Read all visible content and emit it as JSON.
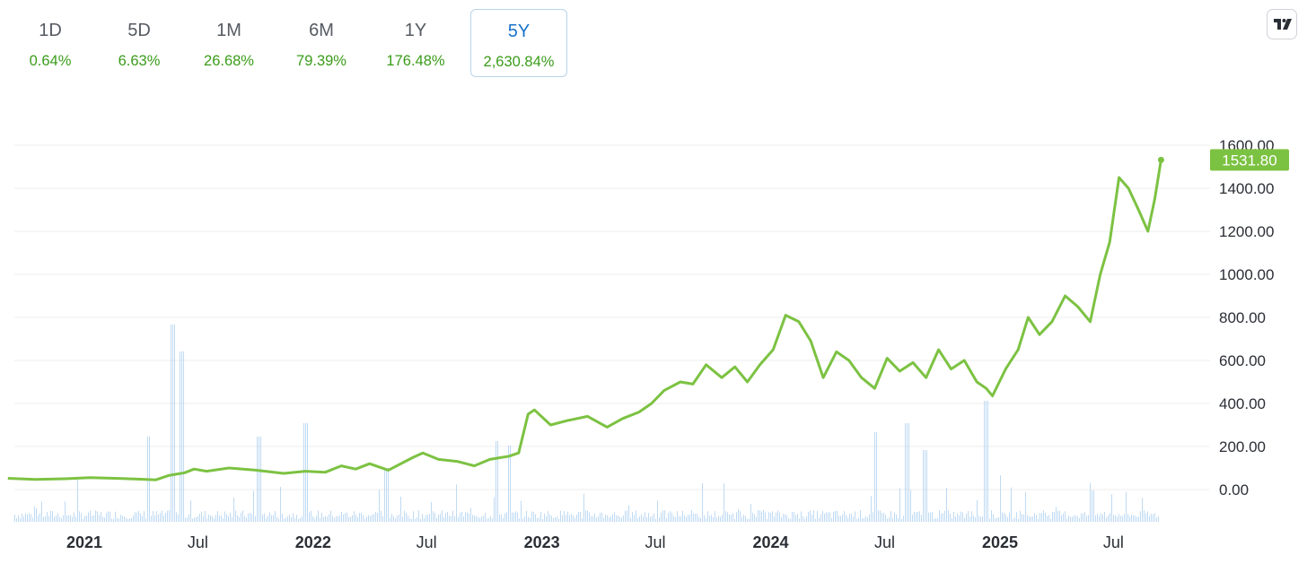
{
  "tabs": [
    {
      "label": "1D",
      "value": "0.64%",
      "active": false
    },
    {
      "label": "5D",
      "value": "6.63%",
      "active": false
    },
    {
      "label": "1M",
      "value": "26.68%",
      "active": false
    },
    {
      "label": "6M",
      "value": "79.39%",
      "active": false
    },
    {
      "label": "1Y",
      "value": "176.48%",
      "active": false
    },
    {
      "label": "5Y",
      "value": "2,630.84%",
      "active": true
    }
  ],
  "logo": {
    "icon": "tradingview-logo-icon"
  },
  "colors": {
    "line": "#7cc242",
    "accent": "#1a73c9",
    "positive": "#3a9c1a",
    "volume": "#a9cdef",
    "grid": "#ececec"
  },
  "chart_data": {
    "type": "line",
    "title": "",
    "xlabel": "",
    "ylabel": "",
    "ylim": [
      -150,
      1600
    ],
    "grid": true,
    "yticks": [
      0,
      200,
      400,
      600,
      800,
      1000,
      1200,
      1400,
      1600
    ],
    "ytick_labels": [
      "0.00",
      "200.00",
      "400.00",
      "600.00",
      "800.00",
      "1000.00",
      "1200.00",
      "1400.00",
      "1600.00"
    ],
    "xticks": [
      {
        "date": "2021-01-01",
        "label": "2021",
        "major": true
      },
      {
        "date": "2021-07-01",
        "label": "Jul",
        "major": false
      },
      {
        "date": "2022-01-01",
        "label": "2022",
        "major": true
      },
      {
        "date": "2022-07-01",
        "label": "Jul",
        "major": false
      },
      {
        "date": "2023-01-01",
        "label": "2023",
        "major": true
      },
      {
        "date": "2023-07-01",
        "label": "Jul",
        "major": false
      },
      {
        "date": "2024-01-01",
        "label": "2024",
        "major": true
      },
      {
        "date": "2024-07-01",
        "label": "Jul",
        "major": false
      },
      {
        "date": "2025-01-01",
        "label": "2025",
        "major": true
      },
      {
        "date": "2025-07-01",
        "label": "Jul",
        "major": false
      }
    ],
    "last_value": "1531.80",
    "series": [
      {
        "values": [
          [
            "2020-09-01",
            52
          ],
          [
            "2020-10-15",
            47
          ],
          [
            "2020-12-01",
            50
          ],
          [
            "2021-01-10",
            55
          ],
          [
            "2021-02-20",
            52
          ],
          [
            "2021-04-01",
            48
          ],
          [
            "2021-04-25",
            45
          ],
          [
            "2021-05-15",
            65
          ],
          [
            "2021-06-10",
            78
          ],
          [
            "2021-06-25",
            95
          ],
          [
            "2021-07-15",
            85
          ],
          [
            "2021-08-20",
            100
          ],
          [
            "2021-10-01",
            90
          ],
          [
            "2021-11-15",
            75
          ],
          [
            "2021-12-20",
            85
          ],
          [
            "2022-01-20",
            80
          ],
          [
            "2022-02-15",
            110
          ],
          [
            "2022-03-10",
            95
          ],
          [
            "2022-04-01",
            120
          ],
          [
            "2022-05-01",
            90
          ],
          [
            "2022-06-10",
            150
          ],
          [
            "2022-06-25",
            170
          ],
          [
            "2022-07-20",
            140
          ],
          [
            "2022-08-20",
            130
          ],
          [
            "2022-09-15",
            110
          ],
          [
            "2022-10-10",
            140
          ],
          [
            "2022-11-10",
            155
          ],
          [
            "2022-11-25",
            170
          ],
          [
            "2022-12-10",
            350
          ],
          [
            "2022-12-20",
            370
          ],
          [
            "2023-01-15",
            300
          ],
          [
            "2023-02-10",
            320
          ],
          [
            "2023-03-15",
            340
          ],
          [
            "2023-04-15",
            290
          ],
          [
            "2023-05-10",
            330
          ],
          [
            "2023-06-05",
            360
          ],
          [
            "2023-06-25",
            400
          ],
          [
            "2023-07-15",
            460
          ],
          [
            "2023-08-10",
            500
          ],
          [
            "2023-08-30",
            490
          ],
          [
            "2023-09-20",
            580
          ],
          [
            "2023-10-15",
            520
          ],
          [
            "2023-11-05",
            570
          ],
          [
            "2023-11-25",
            500
          ],
          [
            "2023-12-15",
            580
          ],
          [
            "2024-01-05",
            650
          ],
          [
            "2024-01-25",
            810
          ],
          [
            "2024-02-15",
            780
          ],
          [
            "2024-03-05",
            690
          ],
          [
            "2024-03-25",
            520
          ],
          [
            "2024-04-15",
            640
          ],
          [
            "2024-05-05",
            600
          ],
          [
            "2024-05-25",
            520
          ],
          [
            "2024-06-15",
            470
          ],
          [
            "2024-07-05",
            610
          ],
          [
            "2024-07-25",
            550
          ],
          [
            "2024-08-15",
            590
          ],
          [
            "2024-09-05",
            520
          ],
          [
            "2024-09-25",
            650
          ],
          [
            "2024-10-15",
            560
          ],
          [
            "2024-11-05",
            600
          ],
          [
            "2024-11-25",
            500
          ],
          [
            "2024-12-10",
            470
          ],
          [
            "2024-12-20",
            435
          ],
          [
            "2025-01-10",
            560
          ],
          [
            "2025-01-30",
            650
          ],
          [
            "2025-02-15",
            800
          ],
          [
            "2025-03-05",
            720
          ],
          [
            "2025-03-25",
            780
          ],
          [
            "2025-04-15",
            900
          ],
          [
            "2025-05-05",
            850
          ],
          [
            "2025-05-25",
            780
          ],
          [
            "2025-06-10",
            1000
          ],
          [
            "2025-06-25",
            1150
          ],
          [
            "2025-07-10",
            1450
          ],
          [
            "2025-07-25",
            1400
          ],
          [
            "2025-08-10",
            1300
          ],
          [
            "2025-08-25",
            1200
          ],
          [
            "2025-09-05",
            1350
          ],
          [
            "2025-09-15",
            1531.8
          ]
        ]
      }
    ]
  }
}
